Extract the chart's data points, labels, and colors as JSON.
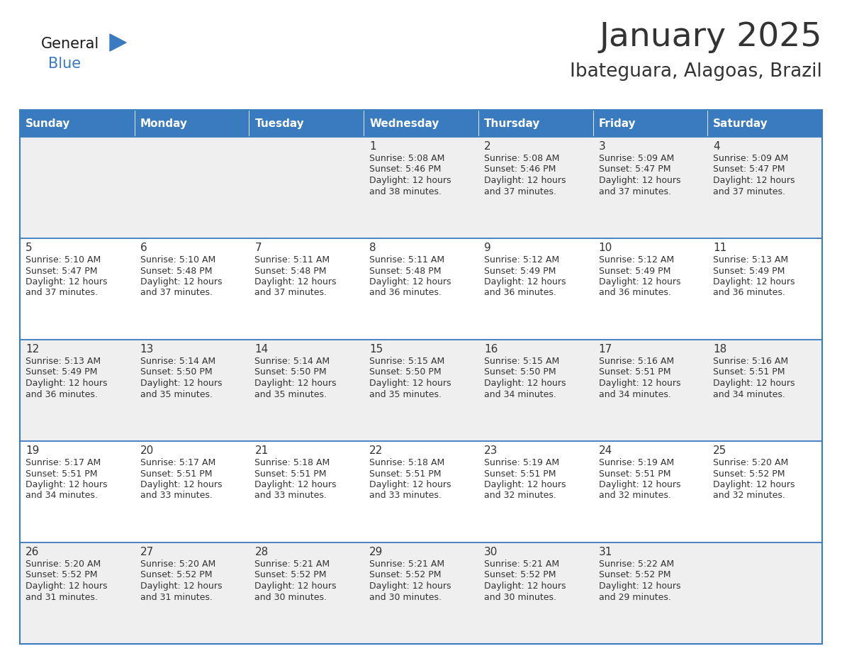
{
  "title": "January 2025",
  "subtitle": "Ibateguara, Alagoas, Brazil",
  "days_of_week": [
    "Sunday",
    "Monday",
    "Tuesday",
    "Wednesday",
    "Thursday",
    "Friday",
    "Saturday"
  ],
  "header_bg": "#3a7abf",
  "header_text": "#ffffff",
  "row_bg_odd": "#efefef",
  "row_bg_even": "#ffffff",
  "border_color": "#3a7abf",
  "text_color": "#333333",
  "day_number_color": "#333333",
  "logo_general_color": "#1a1a1a",
  "logo_blue_color": "#3a7abf",
  "calendar_data": [
    [
      {
        "day": "",
        "sunrise": "",
        "sunset": "",
        "daylight": ""
      },
      {
        "day": "",
        "sunrise": "",
        "sunset": "",
        "daylight": ""
      },
      {
        "day": "",
        "sunrise": "",
        "sunset": "",
        "daylight": ""
      },
      {
        "day": "1",
        "sunrise": "5:08 AM",
        "sunset": "5:46 PM",
        "daylight": "12 hours and 38 minutes."
      },
      {
        "day": "2",
        "sunrise": "5:08 AM",
        "sunset": "5:46 PM",
        "daylight": "12 hours and 37 minutes."
      },
      {
        "day": "3",
        "sunrise": "5:09 AM",
        "sunset": "5:47 PM",
        "daylight": "12 hours and 37 minutes."
      },
      {
        "day": "4",
        "sunrise": "5:09 AM",
        "sunset": "5:47 PM",
        "daylight": "12 hours and 37 minutes."
      }
    ],
    [
      {
        "day": "5",
        "sunrise": "5:10 AM",
        "sunset": "5:47 PM",
        "daylight": "12 hours and 37 minutes."
      },
      {
        "day": "6",
        "sunrise": "5:10 AM",
        "sunset": "5:48 PM",
        "daylight": "12 hours and 37 minutes."
      },
      {
        "day": "7",
        "sunrise": "5:11 AM",
        "sunset": "5:48 PM",
        "daylight": "12 hours and 37 minutes."
      },
      {
        "day": "8",
        "sunrise": "5:11 AM",
        "sunset": "5:48 PM",
        "daylight": "12 hours and 36 minutes."
      },
      {
        "day": "9",
        "sunrise": "5:12 AM",
        "sunset": "5:49 PM",
        "daylight": "12 hours and 36 minutes."
      },
      {
        "day": "10",
        "sunrise": "5:12 AM",
        "sunset": "5:49 PM",
        "daylight": "12 hours and 36 minutes."
      },
      {
        "day": "11",
        "sunrise": "5:13 AM",
        "sunset": "5:49 PM",
        "daylight": "12 hours and 36 minutes."
      }
    ],
    [
      {
        "day": "12",
        "sunrise": "5:13 AM",
        "sunset": "5:49 PM",
        "daylight": "12 hours and 36 minutes."
      },
      {
        "day": "13",
        "sunrise": "5:14 AM",
        "sunset": "5:50 PM",
        "daylight": "12 hours and 35 minutes."
      },
      {
        "day": "14",
        "sunrise": "5:14 AM",
        "sunset": "5:50 PM",
        "daylight": "12 hours and 35 minutes."
      },
      {
        "day": "15",
        "sunrise": "5:15 AM",
        "sunset": "5:50 PM",
        "daylight": "12 hours and 35 minutes."
      },
      {
        "day": "16",
        "sunrise": "5:15 AM",
        "sunset": "5:50 PM",
        "daylight": "12 hours and 34 minutes."
      },
      {
        "day": "17",
        "sunrise": "5:16 AM",
        "sunset": "5:51 PM",
        "daylight": "12 hours and 34 minutes."
      },
      {
        "day": "18",
        "sunrise": "5:16 AM",
        "sunset": "5:51 PM",
        "daylight": "12 hours and 34 minutes."
      }
    ],
    [
      {
        "day": "19",
        "sunrise": "5:17 AM",
        "sunset": "5:51 PM",
        "daylight": "12 hours and 34 minutes."
      },
      {
        "day": "20",
        "sunrise": "5:17 AM",
        "sunset": "5:51 PM",
        "daylight": "12 hours and 33 minutes."
      },
      {
        "day": "21",
        "sunrise": "5:18 AM",
        "sunset": "5:51 PM",
        "daylight": "12 hours and 33 minutes."
      },
      {
        "day": "22",
        "sunrise": "5:18 AM",
        "sunset": "5:51 PM",
        "daylight": "12 hours and 33 minutes."
      },
      {
        "day": "23",
        "sunrise": "5:19 AM",
        "sunset": "5:51 PM",
        "daylight": "12 hours and 32 minutes."
      },
      {
        "day": "24",
        "sunrise": "5:19 AM",
        "sunset": "5:51 PM",
        "daylight": "12 hours and 32 minutes."
      },
      {
        "day": "25",
        "sunrise": "5:20 AM",
        "sunset": "5:52 PM",
        "daylight": "12 hours and 32 minutes."
      }
    ],
    [
      {
        "day": "26",
        "sunrise": "5:20 AM",
        "sunset": "5:52 PM",
        "daylight": "12 hours and 31 minutes."
      },
      {
        "day": "27",
        "sunrise": "5:20 AM",
        "sunset": "5:52 PM",
        "daylight": "12 hours and 31 minutes."
      },
      {
        "day": "28",
        "sunrise": "5:21 AM",
        "sunset": "5:52 PM",
        "daylight": "12 hours and 30 minutes."
      },
      {
        "day": "29",
        "sunrise": "5:21 AM",
        "sunset": "5:52 PM",
        "daylight": "12 hours and 30 minutes."
      },
      {
        "day": "30",
        "sunrise": "5:21 AM",
        "sunset": "5:52 PM",
        "daylight": "12 hours and 30 minutes."
      },
      {
        "day": "31",
        "sunrise": "5:22 AM",
        "sunset": "5:52 PM",
        "daylight": "12 hours and 29 minutes."
      },
      {
        "day": "",
        "sunrise": "",
        "sunset": "",
        "daylight": ""
      }
    ]
  ]
}
